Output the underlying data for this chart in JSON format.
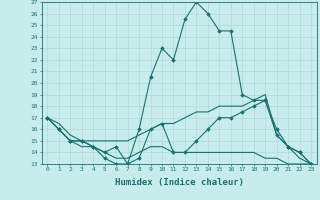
{
  "xlabel": "Humidex (Indice chaleur)",
  "x": [
    0,
    1,
    2,
    3,
    4,
    5,
    6,
    7,
    8,
    9,
    10,
    11,
    12,
    13,
    14,
    15,
    16,
    17,
    18,
    19,
    20,
    21,
    22,
    23
  ],
  "line1_marked": [
    17,
    16,
    15,
    15,
    14.5,
    13.5,
    13,
    13,
    13.5,
    16,
    16.5,
    14,
    14,
    15,
    16,
    17,
    17,
    17.5,
    18,
    18.5,
    16,
    14.5,
    14,
    13
  ],
  "line2_marked": [
    17,
    16,
    15,
    15,
    14.5,
    14,
    14.5,
    13,
    16,
    20.5,
    23,
    22,
    25.5,
    27,
    26,
    24.5,
    24.5,
    19,
    18.5,
    18.5,
    15.5,
    14.5,
    14,
    13
  ],
  "line3_plain": [
    17,
    16.5,
    15.5,
    15,
    15,
    15,
    15,
    15,
    15.5,
    16,
    16.5,
    16.5,
    17,
    17.5,
    17.5,
    18,
    18,
    18,
    18.5,
    19,
    15.5,
    14.5,
    13.5,
    13
  ],
  "line4_plain": [
    17,
    16,
    15,
    14.5,
    14.5,
    14,
    13.5,
    13.5,
    14,
    14.5,
    14.5,
    14,
    14,
    14,
    14,
    14,
    14,
    14,
    14,
    13.5,
    13.5,
    13,
    13,
    13
  ],
  "ylim": [
    13,
    27
  ],
  "yticks": [
    13,
    14,
    15,
    16,
    17,
    18,
    19,
    20,
    21,
    22,
    23,
    24,
    25,
    26,
    27
  ],
  "xticks": [
    0,
    1,
    2,
    3,
    4,
    5,
    6,
    7,
    8,
    9,
    10,
    11,
    12,
    13,
    14,
    15,
    16,
    17,
    18,
    19,
    20,
    21,
    22,
    23
  ],
  "line_color": "#1a7070",
  "bg_color": "#c8ecec",
  "grid_color": "#a8d4d4",
  "spine_color": "#1a7070"
}
